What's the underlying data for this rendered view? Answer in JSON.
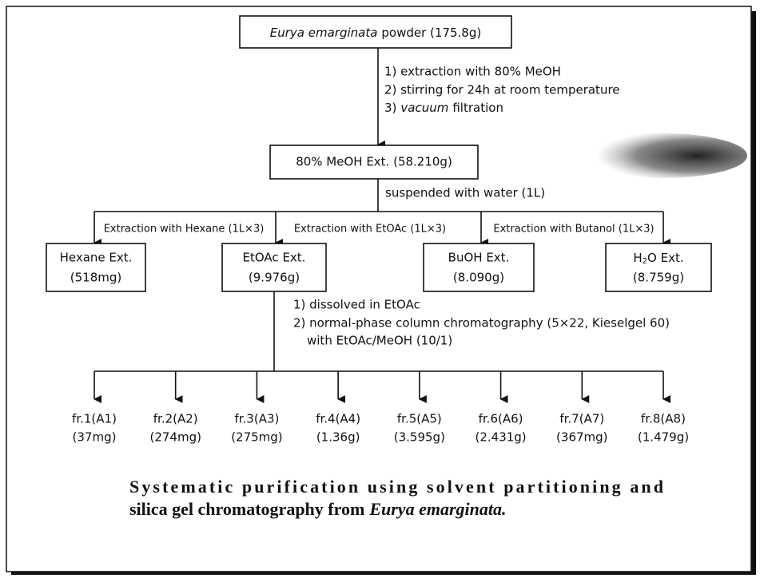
{
  "root": {
    "label_italic": "Eurya emarginata",
    "label": "powder (175.8g)"
  },
  "extraction_steps": [
    "1) extraction with 80% MeOH",
    "2) stirring for 24h at room temperature"
  ],
  "filtration_step": {
    "prefix": "3)",
    "italic": "vacuum",
    "text": "filtration"
  },
  "crude_extract": "80% MeOH Ext. (58.210g)",
  "suspension": "suspended with water (1L)",
  "partitions": [
    "Extraction with Hexane (1L×3)",
    "Extraction with EtOAc (1L×3)",
    "Extraction with Butanol (1L×3)"
  ],
  "extracts": [
    {
      "name": "Hexane Ext.",
      "mass": "(518mg)"
    },
    {
      "name": "EtOAc Ext.",
      "mass": "(9.976g)"
    },
    {
      "name": "BuOH Ext.",
      "mass": "(8.090g)"
    }
  ],
  "water_extract": {
    "h": "H",
    "sub": "2",
    "rest": "O Ext.",
    "mass": "(8.759g)"
  },
  "column_steps": [
    "1) dissolved in EtOAc",
    "2) normal-phase column chromatography (5×22, Kieselgel 60)",
    "with EtOAc/MeOH (10/1)"
  ],
  "fractions": [
    {
      "name": "fr.1(A1)",
      "mass": "(37mg)"
    },
    {
      "name": "fr.2(A2)",
      "mass": "(274mg)"
    },
    {
      "name": "fr.3(A3)",
      "mass": "(275mg)"
    },
    {
      "name": "fr.4(A4)",
      "mass": "(1.36g)"
    },
    {
      "name": "fr.5(A5)",
      "mass": "(3.595g)"
    },
    {
      "name": "fr.6(A6)",
      "mass": "(2.431g)"
    },
    {
      "name": "fr.7(A7)",
      "mass": "(367mg)"
    },
    {
      "name": "fr.8(A8)",
      "mass": "(1.479g)"
    }
  ],
  "caption": {
    "line1": "Systematic purification using solvent partitioning and",
    "line2": "silica gel chromatography from",
    "italic": "Eurya emarginata."
  }
}
